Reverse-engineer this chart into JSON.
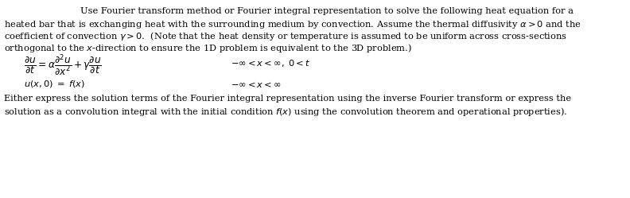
{
  "bg_color": "#ffffff",
  "figsize": [
    7.92,
    2.49
  ],
  "dpi": 100,
  "fs": 8.2,
  "lines": {
    "title": "        Use Fourier transform method or Fourier integral representation to solve the following heat equation for a",
    "l2": "heated bar that is exchanging heat with the surrounding medium by convection. Assume the thermal diffusivity $\\alpha > 0$ and the",
    "l3": "coefficient of convection $\\gamma > 0$.  (Note that the heat density or temperature is assumed to be uniform across cross-sections",
    "l4": "orthogonal to the $x$-direction to ensure the 1D problem is equivalent to the 3D problem.)",
    "footer1": "Either express the solution terms of the Fourier integral representation using the inverse Fourier transform or express the",
    "footer2": "solution as a convolution integral with the initial condition $f(x)$ using the convolution theorem and operational properties)."
  }
}
